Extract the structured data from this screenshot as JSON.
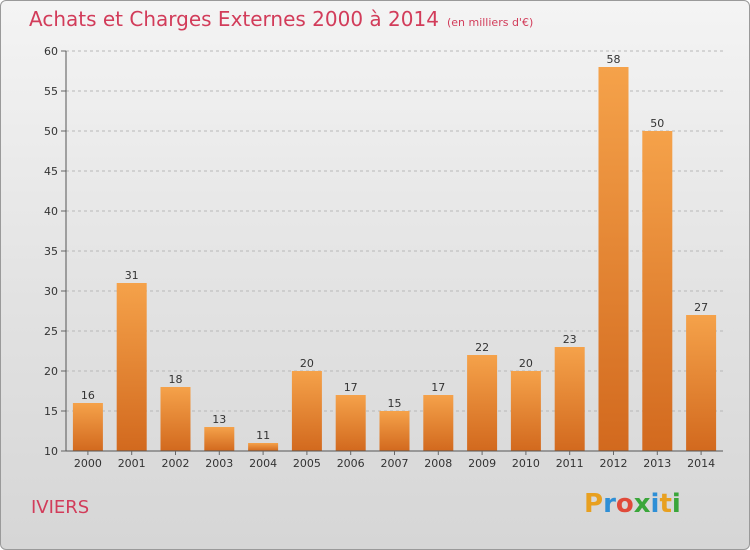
{
  "header": {
    "title": "Achats et Charges Externes 2000 à 2014",
    "subtitle": "(en milliers d'€)"
  },
  "footer": {
    "commune": "IVIERS",
    "logo_letters": [
      "P",
      "r",
      "o",
      "x",
      "i",
      "t",
      "i"
    ],
    "logo_colors": [
      "#e8a020",
      "#2e8fd6",
      "#e04a3a",
      "#3aa63a",
      "#2e8fd6",
      "#e8a020",
      "#3aa63a"
    ]
  },
  "colors": {
    "bar_top": "#f5a24a",
    "bar_bottom": "#d2691e",
    "title": "#d23c5a"
  },
  "chart_data": {
    "type": "bar",
    "categories": [
      "2000",
      "2001",
      "2002",
      "2003",
      "2004",
      "2005",
      "2006",
      "2007",
      "2008",
      "2009",
      "2010",
      "2011",
      "2012",
      "2013",
      "2014"
    ],
    "values": [
      16,
      31,
      18,
      13,
      11,
      20,
      17,
      15,
      17,
      22,
      20,
      23,
      58,
      50,
      27
    ],
    "ylim": [
      10,
      60
    ],
    "yticks": [
      10,
      15,
      20,
      25,
      30,
      35,
      40,
      45,
      50,
      55,
      60
    ],
    "grid": true,
    "title": "Achats et Charges Externes 2000 à 2014",
    "xlabel": "",
    "ylabel": ""
  }
}
